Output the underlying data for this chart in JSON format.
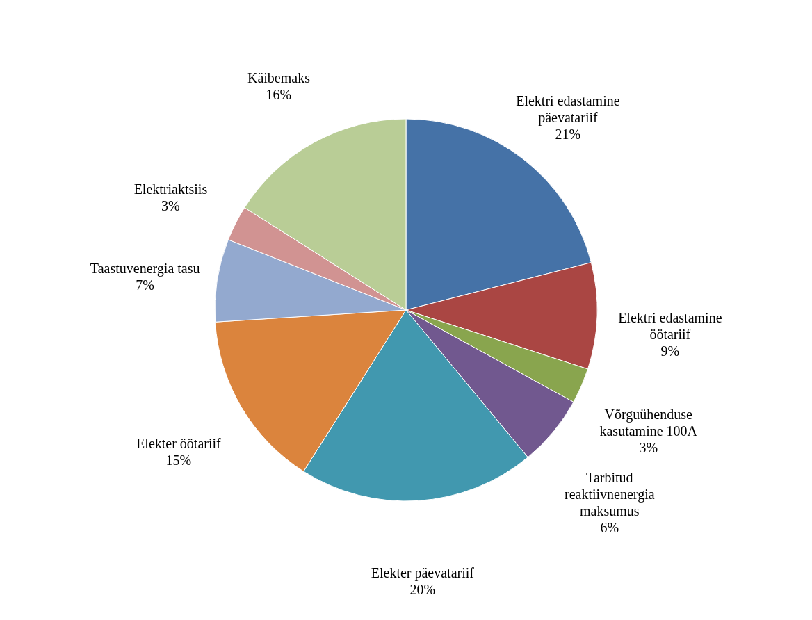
{
  "chart_data": {
    "type": "pie",
    "categories": [
      "Elektri edastamine päevatariif",
      "Elektri edastamine öötariif",
      "Võrguühenduse kasutamine 100A",
      "Tarbitud reaktiivnenergia maksumus",
      "Elekter päevatariif",
      "Elekter öötariif",
      "Taastuvenergia tasu",
      "Elektriaktsiis",
      "Käibemaks"
    ],
    "values": [
      21,
      9,
      3,
      6,
      20,
      15,
      7,
      3,
      16
    ],
    "colors": [
      "#4572a7",
      "#aa4643",
      "#89a54e",
      "#71588f",
      "#4198af",
      "#db843d",
      "#93a9cf",
      "#d19392",
      "#b9cd96"
    ],
    "value_labels": [
      "21%",
      "9%",
      "3%",
      "6%",
      "20%",
      "15%",
      "7%",
      "3%",
      "16%"
    ]
  }
}
